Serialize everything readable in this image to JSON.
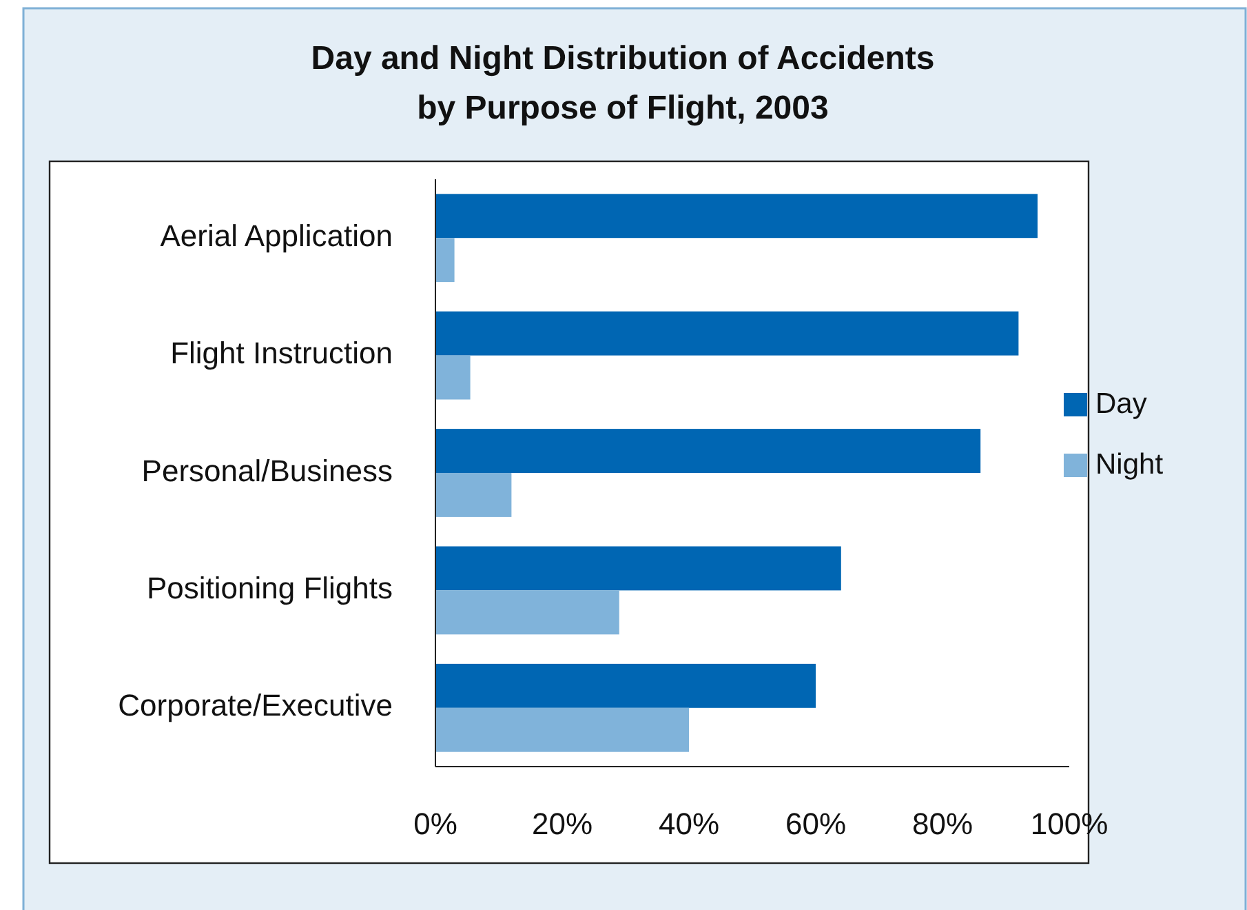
{
  "chart_data": {
    "type": "bar",
    "orientation": "horizontal",
    "title": "Day and Night Distribution of Accidents\nby Purpose of Flight, 2003",
    "categories": [
      "Aerial Application",
      "Flight Instruction",
      "Personal/Business",
      "Positioning Flights",
      "Corporate/Executive"
    ],
    "series": [
      {
        "name": "Day",
        "color": "#0066b3",
        "values": [
          95,
          92,
          86,
          64,
          60
        ]
      },
      {
        "name": "Night",
        "color": "#80b3da",
        "values": [
          3,
          5.5,
          12,
          29,
          40
        ]
      }
    ],
    "xlim": [
      0,
      100
    ],
    "xticks": [
      {
        "value": 0,
        "label": "0%"
      },
      {
        "value": 20,
        "label": "20%"
      },
      {
        "value": 40,
        "label": "40%"
      },
      {
        "value": 60,
        "label": "60%"
      },
      {
        "value": 80,
        "label": "80%"
      },
      {
        "value": 100,
        "label": "100%"
      }
    ],
    "grid": false,
    "legend": "right"
  }
}
